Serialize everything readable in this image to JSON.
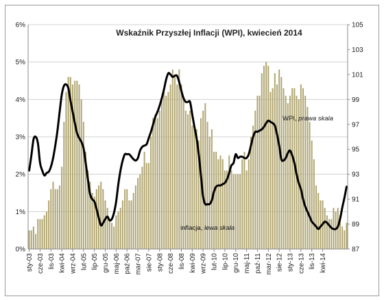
{
  "chart_data": {
    "type": "bar+line",
    "title": "Wskaźnik Przyszłej Inflacji (WPI), kwiecień 2014",
    "left_axis": {
      "ticks": [
        "0%",
        "1%",
        "2%",
        "3%",
        "4%",
        "5%",
        "6%"
      ],
      "min": 0,
      "max": 6
    },
    "right_axis": {
      "ticks": [
        "87",
        "89",
        "91",
        "93",
        "95",
        "97",
        "99",
        "101",
        "103",
        "105"
      ],
      "min": 87,
      "max": 105
    },
    "x_tick_labels": [
      "sty-03",
      "cze-03",
      "lis-03",
      "kwi-04",
      "wrz-04",
      "lut-05",
      "lip-05",
      "gru-05",
      "maj-06",
      "paź-06",
      "mar-07",
      "sie-07",
      "sty-08",
      "cze-08",
      "lis-08",
      "kwi-09",
      "wrz-09",
      "lut-10",
      "lip-10",
      "gru-10",
      "maj-11",
      "paź-11",
      "mar-12",
      "sie-12",
      "sty-13",
      "cze-13",
      "lis-13",
      "kwi-14"
    ],
    "annotations": {
      "inflation": "inflacja, ",
      "inflation_scale": "lewa skala",
      "wpi": "WPI, ",
      "wpi_scale": "prawa skala"
    },
    "series": [
      {
        "name": "inflacja",
        "axis": "left",
        "kind": "bar",
        "color": "#b1a672",
        "values": [
          0.5,
          0.5,
          0.6,
          0.4,
          0.8,
          0.8,
          0.8,
          0.9,
          1.0,
          1.3,
          1.6,
          1.8,
          1.6,
          1.6,
          1.7,
          2.2,
          3.4,
          4.2,
          4.6,
          4.6,
          4.4,
          4.5,
          4.5,
          4.4,
          4.0,
          3.4,
          2.6,
          2.1,
          1.8,
          1.5,
          1.4,
          1.6,
          1.7,
          1.8,
          1.6,
          1.3,
          1.1,
          0.8,
          0.7,
          0.6,
          0.9,
          1.0,
          1.1,
          1.3,
          1.6,
          1.6,
          1.3,
          1.3,
          1.5,
          1.7,
          1.9,
          2.0,
          2.2,
          2.6,
          2.3,
          2.3,
          3.0,
          3.5,
          3.6,
          3.5,
          3.7,
          4.0,
          4.3,
          4.1,
          4.2,
          4.4,
          4.8,
          4.6,
          4.4,
          4.8,
          4.4,
          4.0,
          3.7,
          3.6,
          3.7,
          3.3,
          3.2,
          3.2,
          2.9,
          3.5,
          3.7,
          3.9,
          3.4,
          3.0,
          3.2,
          2.6,
          2.6,
          2.4,
          2.5,
          2.4,
          2.1,
          2.1,
          2.5,
          2.1,
          2.0,
          2.0,
          2.0,
          2.0,
          2.4,
          2.6,
          2.1,
          2.4,
          3.0,
          3.3,
          3.7,
          4.1,
          4.1,
          4.7,
          4.9,
          5.0,
          4.9,
          4.2,
          4.3,
          4.7,
          4.4,
          4.8,
          4.6,
          4.3,
          4.1,
          3.9,
          4.1,
          4.3,
          4.3,
          4.1,
          4.0,
          4.4,
          4.3,
          4.1,
          3.8,
          3.4,
          2.9,
          2.4,
          1.7,
          1.5,
          1.3,
          1.3,
          1.1,
          0.9,
          0.8,
          0.8,
          1.1,
          1.0,
          1.1,
          0.9,
          0.6,
          0.5,
          0.7
        ]
      },
      {
        "name": "WPI",
        "axis": "right",
        "kind": "line",
        "color": "#000000",
        "values": [
          93.3,
          94.5,
          95.8,
          96.0,
          95.5,
          93.9,
          93.3,
          92.9,
          93.1,
          93.2,
          93.6,
          94.3,
          95.3,
          96.5,
          98.0,
          99.4,
          100.1,
          100.2,
          99.9,
          98.9,
          98.0,
          97.1,
          96.3,
          95.9,
          95.6,
          95.1,
          93.9,
          92.6,
          91.4,
          91.0,
          90.8,
          90.2,
          89.5,
          88.9,
          89.1,
          89.4,
          89.6,
          89.3,
          89.4,
          89.9,
          90.8,
          92.2,
          93.3,
          94.1,
          94.6,
          94.6,
          94.6,
          94.4,
          94.2,
          94.1,
          94.3,
          94.9,
          95.2,
          95.3,
          95.4,
          95.9,
          96.4,
          97.0,
          97.6,
          98.0,
          98.5,
          99.1,
          99.8,
          100.6,
          101.1,
          101.0,
          100.8,
          100.9,
          100.9,
          100.4,
          99.7,
          99.1,
          98.8,
          98.8,
          98.8,
          97.8,
          96.8,
          95.9,
          94.6,
          92.9,
          91.2,
          90.6,
          90.6,
          90.6,
          90.9,
          91.6,
          92.0,
          92.1,
          92.1,
          92.2,
          92.3,
          92.6,
          93.1,
          93.7,
          93.9,
          94.6,
          94.3,
          94.4,
          94.4,
          94.3,
          94.3,
          94.6,
          95.3,
          96.0,
          96.4,
          96.4,
          96.5,
          96.6,
          96.8,
          97.1,
          97.3,
          97.2,
          97.1,
          96.9,
          96.2,
          95.3,
          94.2,
          94.1,
          94.3,
          94.7,
          94.9,
          94.5,
          93.9,
          93.0,
          92.3,
          91.8,
          91.0,
          90.4,
          90.0,
          89.6,
          89.2,
          89.0,
          88.8,
          88.6,
          88.8,
          89.0,
          89.2,
          89.1,
          88.9,
          88.7,
          88.6,
          88.6,
          88.8,
          89.4,
          90.3,
          91.1,
          92.0
        ]
      }
    ]
  }
}
